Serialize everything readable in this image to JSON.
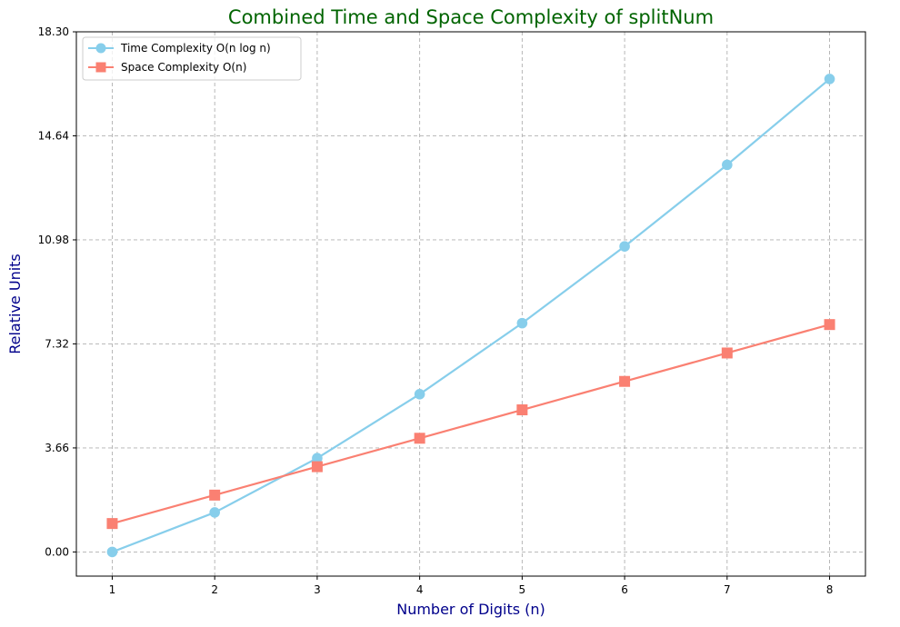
{
  "chart_data": {
    "type": "line",
    "title": "Combined Time and Space Complexity of splitNum",
    "xlabel": "Number of Digits (n)",
    "ylabel": "Relative Units",
    "x": [
      1,
      2,
      3,
      4,
      5,
      6,
      7,
      8
    ],
    "x_tick_labels": [
      "1",
      "2",
      "3",
      "4",
      "5",
      "6",
      "7",
      "8"
    ],
    "y_tick_labels": [
      "0.00",
      "3.66",
      "7.32",
      "10.98",
      "14.64",
      "18.30"
    ],
    "y_ticks": [
      0.0,
      3.66,
      7.32,
      10.98,
      14.64,
      18.3
    ],
    "xlim": [
      0.65,
      8.35
    ],
    "ylim": [
      -0.85,
      18.3
    ],
    "grid": true,
    "legend_position": "top-left",
    "series": [
      {
        "name": "Time Complexity O(n log n)",
        "color": "#87ceeb",
        "marker": "circle",
        "values": [
          0.0,
          1.39,
          3.3,
          5.55,
          8.05,
          10.75,
          13.62,
          16.64
        ]
      },
      {
        "name": "Space Complexity O(n)",
        "color": "#fa8072",
        "marker": "square",
        "values": [
          1,
          2,
          3,
          4,
          5,
          6,
          7,
          8
        ]
      }
    ],
    "colors": {
      "title": "#006400",
      "axis_labels": "#00008b",
      "grid": "#b0b0b0"
    }
  }
}
